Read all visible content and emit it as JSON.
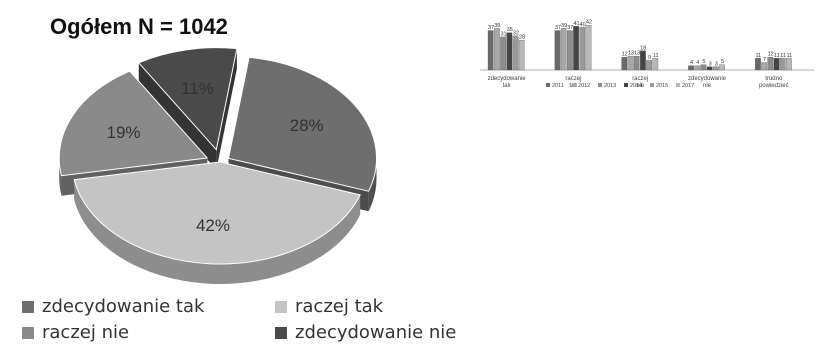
{
  "chart_data": [
    {
      "type": "pie",
      "title": "Ogółem N = 1042",
      "categories": [
        "zdecydowanie tak",
        "raczej tak",
        "raczej nie",
        "zdecydowanie nie"
      ],
      "values": [
        28,
        42,
        19,
        11
      ],
      "labels": [
        "28%",
        "42%",
        "19%",
        "11%"
      ],
      "colors": [
        "#6e6e6e",
        "#c4c4c4",
        "#8a8a8a",
        "#4a4a4a"
      ],
      "legend_position": "bottom"
    },
    {
      "type": "bar",
      "categories": [
        "zdecydowanie tak",
        "raczej tak",
        "raczej nie",
        "zdecydowanie nie",
        "trudno powiedzieć"
      ],
      "series": [
        {
          "name": "2011",
          "values": [
            37,
            37,
            12,
            4,
            11
          ]
        },
        {
          "name": "2012",
          "values": [
            39,
            39,
            13,
            4,
            7
          ]
        },
        {
          "name": "2013",
          "values": [
            31,
            37,
            13,
            5,
            12
          ]
        },
        {
          "name": "2014",
          "values": [
            35,
            41,
            18,
            3,
            11
          ]
        },
        {
          "name": "2015",
          "values": [
            32,
            40,
            9,
            3,
            11
          ]
        },
        {
          "name": "2017",
          "values": [
            28,
            42,
            11,
            5,
            11
          ]
        }
      ],
      "ylim": [
        0,
        45
      ],
      "legend_position": "bottom",
      "series_colors": [
        "#6a6a6a",
        "#a8a8a8",
        "#8c8c8c",
        "#454545",
        "#9a9a9a",
        "#b8b8b8"
      ]
    }
  ]
}
